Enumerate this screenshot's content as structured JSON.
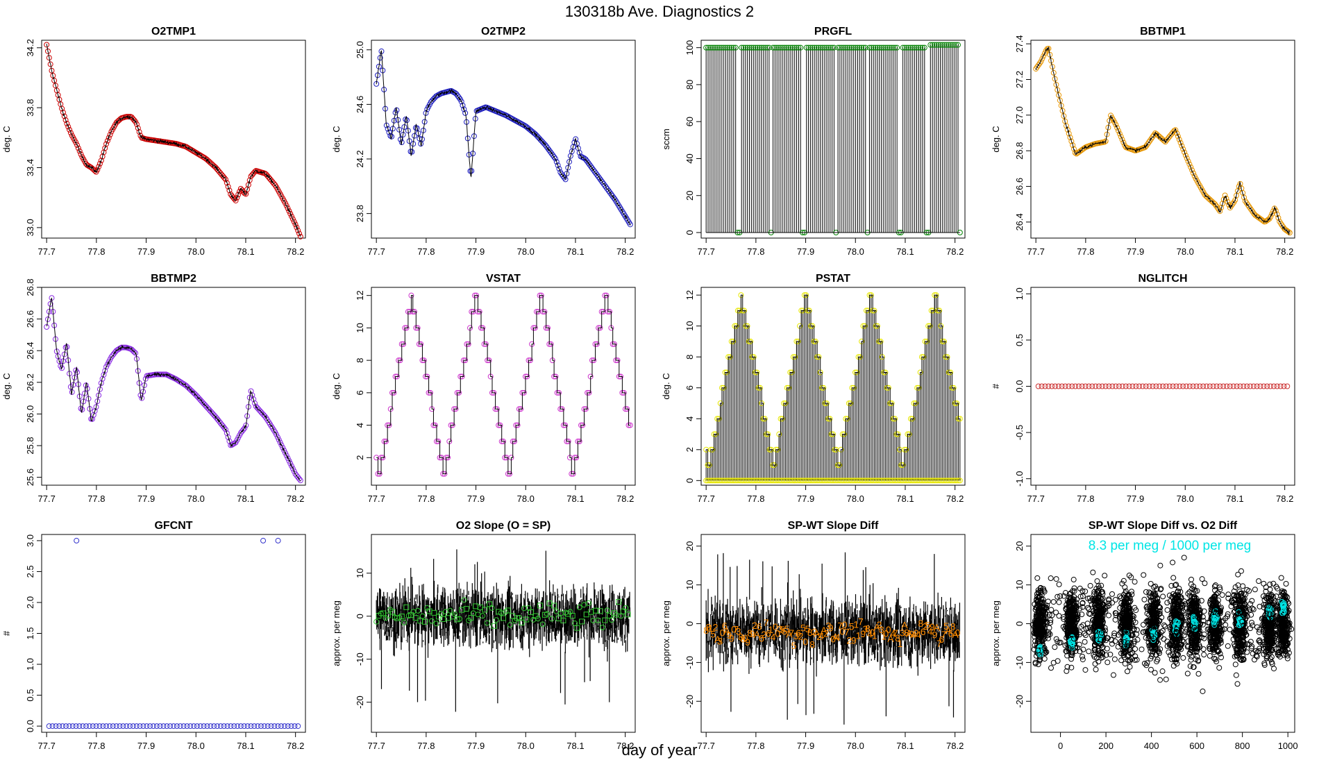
{
  "page": {
    "title": "130318b   Ave. Diagnostics 2",
    "xlabel": "day of year"
  },
  "chart_data": [
    {
      "id": "o2tmp1",
      "type": "line",
      "title": "O2TMP1",
      "ylabel": "deg. C",
      "color": "#cc0000",
      "marker": "circle",
      "xlim": [
        77.69,
        78.22
      ],
      "ylim": [
        32.93,
        34.25
      ],
      "xticks": [
        77.7,
        77.8,
        77.9,
        78.0,
        78.1,
        78.2
      ],
      "xtick_labels": [
        "77.7",
        "77.8",
        "77.9",
        "78.0",
        "78.1",
        "78.2"
      ],
      "yticks": [
        33.0,
        33.4,
        33.8,
        34.2
      ],
      "ytick_labels": [
        "33.0",
        "33.4",
        "33.8",
        "34.2"
      ],
      "series": [
        {
          "x": [
            77.7,
            77.71,
            77.72,
            77.73,
            77.74,
            77.75,
            77.76,
            77.77,
            77.78,
            77.79,
            77.8,
            77.81,
            77.82,
            77.83,
            77.84,
            77.85,
            77.86,
            77.87,
            77.88,
            77.89,
            77.9,
            77.92,
            77.94,
            77.96,
            77.98,
            78.0,
            78.02,
            78.04,
            78.06,
            78.07,
            78.08,
            78.09,
            78.1,
            78.11,
            78.12,
            78.14,
            78.16,
            78.18,
            78.2,
            78.21
          ],
          "y": [
            34.22,
            34.05,
            33.92,
            33.8,
            33.7,
            33.62,
            33.56,
            33.48,
            33.42,
            33.4,
            33.37,
            33.45,
            33.56,
            33.64,
            33.7,
            33.73,
            33.74,
            33.74,
            33.7,
            33.6,
            33.59,
            33.58,
            33.57,
            33.56,
            33.54,
            33.5,
            33.46,
            33.4,
            33.32,
            33.22,
            33.18,
            33.26,
            33.22,
            33.34,
            33.38,
            33.36,
            33.28,
            33.16,
            33.02,
            32.94
          ]
        }
      ]
    },
    {
      "id": "o2tmp2",
      "type": "line",
      "title": "O2TMP2",
      "ylabel": "deg. C",
      "color": "#1f1fbf",
      "marker": "circle",
      "xlim": [
        77.69,
        78.22
      ],
      "ylim": [
        23.62,
        25.07
      ],
      "xticks": [
        77.7,
        77.8,
        77.9,
        78.0,
        78.1,
        78.2
      ],
      "xtick_labels": [
        "77.7",
        "77.8",
        "77.9",
        "78.0",
        "78.1",
        "78.2"
      ],
      "yticks": [
        23.8,
        24.2,
        24.6,
        25.0
      ],
      "ytick_labels": [
        "23.8",
        "24.2",
        "24.6",
        "25.0"
      ],
      "series": [
        {
          "x": [
            77.7,
            77.71,
            77.72,
            77.73,
            77.74,
            77.75,
            77.76,
            77.77,
            77.78,
            77.79,
            77.8,
            77.81,
            77.82,
            77.83,
            77.84,
            77.85,
            77.86,
            77.87,
            77.88,
            77.89,
            77.9,
            77.92,
            77.94,
            77.96,
            77.98,
            78.0,
            78.02,
            78.04,
            78.06,
            78.07,
            78.08,
            78.09,
            78.1,
            78.11,
            78.12,
            78.14,
            78.16,
            78.18,
            78.2,
            78.21
          ],
          "y": [
            24.75,
            25.0,
            24.45,
            24.35,
            24.58,
            24.3,
            24.52,
            24.22,
            24.45,
            24.3,
            24.55,
            24.62,
            24.66,
            24.68,
            24.69,
            24.7,
            24.68,
            24.63,
            24.52,
            24.05,
            24.55,
            24.58,
            24.55,
            24.52,
            24.48,
            24.44,
            24.38,
            24.3,
            24.2,
            24.1,
            24.05,
            24.22,
            24.35,
            24.22,
            24.2,
            24.1,
            24.0,
            23.9,
            23.78,
            23.72
          ]
        }
      ]
    },
    {
      "id": "prgfl",
      "type": "spike",
      "title": "PRGFL",
      "ylabel": "sccm",
      "color": "#008000",
      "marker": "circle",
      "xlim": [
        77.69,
        78.22
      ],
      "ylim": [
        -3,
        104
      ],
      "xticks": [
        77.7,
        77.8,
        77.9,
        78.0,
        78.1,
        78.2
      ],
      "xtick_labels": [
        "77.7",
        "77.8",
        "77.9",
        "78.0",
        "78.1",
        "78.2"
      ],
      "yticks": [
        0,
        20,
        40,
        60,
        80,
        100
      ],
      "ytick_labels": [
        "0",
        "20",
        "40",
        "60",
        "80",
        "100"
      ],
      "series": [
        {
          "x_start": 77.7,
          "x_end": 78.21,
          "count": 130,
          "value": 100,
          "zeros_at": [
            77.765,
            77.83,
            77.895,
            77.96,
            78.025,
            78.09,
            78.145,
            78.21
          ],
          "high_after": 78.15,
          "high_value": 101.5
        }
      ]
    },
    {
      "id": "bbtmp1",
      "type": "line",
      "title": "BBTMP1",
      "ylabel": "deg. C",
      "color": "#e69500",
      "marker": "circle",
      "xlim": [
        77.69,
        78.22
      ],
      "ylim": [
        26.31,
        27.42
      ],
      "xticks": [
        77.7,
        77.8,
        77.9,
        78.0,
        78.1,
        78.2
      ],
      "xtick_labels": [
        "77.7",
        "77.8",
        "77.9",
        "78.0",
        "78.1",
        "78.2"
      ],
      "yticks": [
        26.4,
        26.6,
        26.8,
        27.0,
        27.2,
        27.4
      ],
      "ytick_labels": [
        "26.4",
        "26.6",
        "26.8",
        "27.0",
        "27.2",
        "27.4"
      ],
      "series": [
        {
          "x": [
            77.7,
            77.71,
            77.72,
            77.725,
            77.74,
            77.76,
            77.78,
            77.8,
            77.82,
            77.84,
            77.85,
            77.86,
            77.88,
            77.9,
            77.92,
            77.94,
            77.96,
            77.98,
            78.0,
            78.02,
            78.04,
            78.06,
            78.07,
            78.08,
            78.09,
            78.1,
            78.11,
            78.12,
            78.14,
            78.16,
            78.17,
            78.18,
            78.19,
            78.2,
            78.21
          ],
          "y": [
            27.26,
            27.3,
            27.36,
            27.38,
            27.18,
            26.95,
            26.78,
            26.82,
            26.84,
            26.85,
            27.0,
            26.95,
            26.82,
            26.8,
            26.82,
            26.9,
            26.85,
            26.92,
            26.78,
            26.65,
            26.55,
            26.5,
            26.46,
            26.55,
            26.48,
            26.52,
            26.62,
            26.52,
            26.44,
            26.4,
            26.42,
            26.48,
            26.4,
            26.36,
            26.34
          ]
        }
      ]
    },
    {
      "id": "bbtmp2",
      "type": "line",
      "title": "BBTMP2",
      "ylabel": "deg. C",
      "color": "#8a2be2",
      "marker": "circle",
      "xlim": [
        77.69,
        78.22
      ],
      "ylim": [
        25.55,
        26.8
      ],
      "xticks": [
        77.7,
        77.8,
        77.9,
        78.0,
        78.1,
        78.2
      ],
      "xtick_labels": [
        "77.7",
        "77.8",
        "77.9",
        "78.0",
        "78.1",
        "78.2"
      ],
      "yticks": [
        25.6,
        25.8,
        26.0,
        26.2,
        26.4,
        26.6,
        26.8
      ],
      "ytick_labels": [
        "25.6",
        "25.8",
        "26.0",
        "26.2",
        "26.4",
        "26.6",
        "26.8"
      ],
      "series": [
        {
          "x": [
            77.7,
            77.71,
            77.72,
            77.73,
            77.74,
            77.75,
            77.76,
            77.77,
            77.78,
            77.79,
            77.8,
            77.81,
            77.82,
            77.83,
            77.84,
            77.85,
            77.86,
            77.87,
            77.88,
            77.89,
            77.9,
            77.92,
            77.94,
            77.96,
            77.98,
            78.0,
            78.02,
            78.04,
            78.06,
            78.07,
            78.08,
            78.09,
            78.1,
            78.11,
            78.12,
            78.14,
            78.16,
            78.18,
            78.2,
            78.21
          ],
          "y": [
            26.55,
            26.74,
            26.4,
            26.28,
            26.45,
            26.12,
            26.3,
            26.0,
            26.2,
            25.95,
            26.05,
            26.2,
            26.3,
            26.36,
            26.4,
            26.42,
            26.42,
            26.41,
            26.38,
            26.08,
            26.24,
            26.25,
            26.25,
            26.22,
            26.18,
            26.12,
            26.05,
            25.98,
            25.9,
            25.8,
            25.82,
            25.88,
            25.92,
            26.15,
            26.05,
            25.98,
            25.88,
            25.75,
            25.62,
            25.58
          ]
        }
      ]
    },
    {
      "id": "vstat",
      "type": "step",
      "title": "VSTAT",
      "ylabel": "deg. C",
      "color": "#cc33cc",
      "marker": "circle",
      "xlim": [
        77.69,
        78.22
      ],
      "ylim": [
        0.3,
        12.5
      ],
      "xticks": [
        77.7,
        77.8,
        77.9,
        78.0,
        78.1,
        78.2
      ],
      "xtick_labels": [
        "77.7",
        "77.8",
        "77.9",
        "78.0",
        "78.1",
        "78.2"
      ],
      "yticks": [
        2,
        4,
        6,
        8,
        10,
        12
      ],
      "ytick_labels": [
        "2",
        "4",
        "6",
        "8",
        "10",
        "12"
      ],
      "series": [
        {
          "x_start": 77.7,
          "x_end": 78.21,
          "period": 0.13,
          "min": 1,
          "max": 12,
          "phase_start": 77.705
        }
      ]
    },
    {
      "id": "pstat",
      "type": "step-spike",
      "title": "PSTAT",
      "ylabel": "deg. C",
      "color": "#e6e600",
      "marker": "circle",
      "xlim": [
        77.69,
        78.22
      ],
      "ylim": [
        -0.3,
        12.5
      ],
      "xticks": [
        77.7,
        77.8,
        77.9,
        78.0,
        78.1,
        78.2
      ],
      "xtick_labels": [
        "77.7",
        "77.8",
        "77.9",
        "78.0",
        "78.1",
        "78.2"
      ],
      "yticks": [
        0,
        2,
        4,
        6,
        8,
        10,
        12
      ],
      "ytick_labels": [
        "0",
        "2",
        "4",
        "6",
        "8",
        "10",
        "12"
      ],
      "series": [
        {
          "x_start": 77.7,
          "x_end": 78.21,
          "period": 0.13,
          "min": 1,
          "max": 12,
          "phase_start": 77.705
        }
      ]
    },
    {
      "id": "nglitch",
      "type": "scatter",
      "title": "NGLITCH",
      "ylabel": "#",
      "color": "#cc3333",
      "marker": "circle",
      "xlim": [
        77.69,
        78.22
      ],
      "ylim": [
        -1.07,
        1.07
      ],
      "xticks": [
        77.7,
        77.8,
        77.9,
        78.0,
        78.1,
        78.2
      ],
      "xtick_labels": [
        "77.7",
        "77.8",
        "77.9",
        "78.0",
        "78.1",
        "78.2"
      ],
      "yticks": [
        -1.0,
        -0.5,
        0.0,
        0.5,
        1.0
      ],
      "ytick_labels": [
        "-1.0",
        "-0.5",
        "0.0",
        "0.5",
        "1.0"
      ],
      "series": [
        {
          "x_start": 77.705,
          "x_end": 78.205,
          "count": 75,
          "value": 0
        }
      ]
    },
    {
      "id": "gfcnt",
      "type": "scatter",
      "title": "GFCNT",
      "ylabel": "#",
      "color": "#3333cc",
      "marker": "circle",
      "xlim": [
        77.69,
        78.22
      ],
      "ylim": [
        -0.1,
        3.1
      ],
      "xticks": [
        77.7,
        77.8,
        77.9,
        78.0,
        78.1,
        78.2
      ],
      "xtick_labels": [
        "77.7",
        "77.8",
        "77.9",
        "78.0",
        "78.1",
        "78.2"
      ],
      "yticks": [
        0.0,
        0.5,
        1.0,
        1.5,
        2.0,
        2.5,
        3.0
      ],
      "ytick_labels": [
        "0.0",
        "0.5",
        "1.0",
        "1.5",
        "2.0",
        "2.5",
        "3.0"
      ],
      "series": [
        {
          "x_start": 77.705,
          "x_end": 78.205,
          "count": 75,
          "value": 0,
          "high_points": [
            [
              77.76,
              3
            ],
            [
              78.135,
              3
            ],
            [
              78.165,
              3
            ]
          ]
        }
      ]
    },
    {
      "id": "o2slope",
      "type": "noise",
      "title": "O2 Slope (O = SP)",
      "ylabel": "approx. per meg",
      "color": "#33cc33",
      "marker": "mixed",
      "xlim": [
        77.69,
        78.22
      ],
      "ylim": [
        -27,
        19
      ],
      "xticks": [
        77.7,
        77.8,
        77.9,
        78.0,
        78.1,
        78.2
      ],
      "xtick_labels": [
        "77.7",
        "77.8",
        "77.9",
        "78.0",
        "78.1",
        "78.2"
      ],
      "yticks": [
        -20,
        -10,
        0,
        10
      ],
      "ytick_labels": [
        "-20",
        "-10",
        "0",
        "10"
      ],
      "series": [
        {
          "x_start": 77.7,
          "x_end": 78.21,
          "center": 0,
          "spread": 5,
          "extreme_low": -25,
          "extreme_high": 16
        }
      ]
    },
    {
      "id": "spwt",
      "type": "noise-label",
      "title": "SP-WT Slope Diff",
      "ylabel": "approx. per meg",
      "color": "#ff8c00",
      "marker": "text",
      "labels_pool": [
        "1",
        "2",
        "3",
        "4",
        "5",
        "6",
        "7",
        "8",
        "9",
        "0",
        "A"
      ],
      "xlim": [
        77.69,
        78.22
      ],
      "ylim": [
        -28,
        23
      ],
      "xticks": [
        77.7,
        77.8,
        77.9,
        78.0,
        78.1,
        78.2
      ],
      "xtick_labels": [
        "77.7",
        "77.8",
        "77.9",
        "78.0",
        "78.1",
        "78.2"
      ],
      "yticks": [
        -20,
        -10,
        0,
        10,
        20
      ],
      "ytick_labels": [
        "-20",
        "-10",
        "0",
        "10",
        "20"
      ],
      "series": [
        {
          "x_start": 77.7,
          "x_end": 78.21,
          "center": -2,
          "spread": 6,
          "extreme_low": -27,
          "extreme_high": 21
        }
      ]
    },
    {
      "id": "spwt_vs_o2",
      "type": "scatter",
      "title": "SP-WT Slope Diff vs. O2 Diff",
      "ylabel": "approx. per meg",
      "color": "#00e5e5",
      "marker": "circle",
      "annotation": "8.3 per meg / 1000 per meg",
      "xlim": [
        -130,
        1030
      ],
      "ylim": [
        -28,
        23
      ],
      "xticks": [
        0,
        200,
        400,
        600,
        800,
        1000
      ],
      "xtick_labels": [
        "0",
        "200",
        "400",
        "600",
        "800",
        "1000"
      ],
      "yticks": [
        -20,
        -10,
        0,
        10,
        20
      ],
      "ytick_labels": [
        "-20",
        "-10",
        "0",
        "10",
        "20"
      ],
      "series": [
        {
          "cluster_centers": [
            -90,
            50,
            170,
            290,
            410,
            510,
            590,
            680,
            790,
            920,
            980
          ],
          "cyan_means": [
            -7,
            -5,
            -3,
            -4,
            -3,
            -1,
            0,
            1,
            1,
            3,
            4
          ]
        }
      ]
    }
  ]
}
